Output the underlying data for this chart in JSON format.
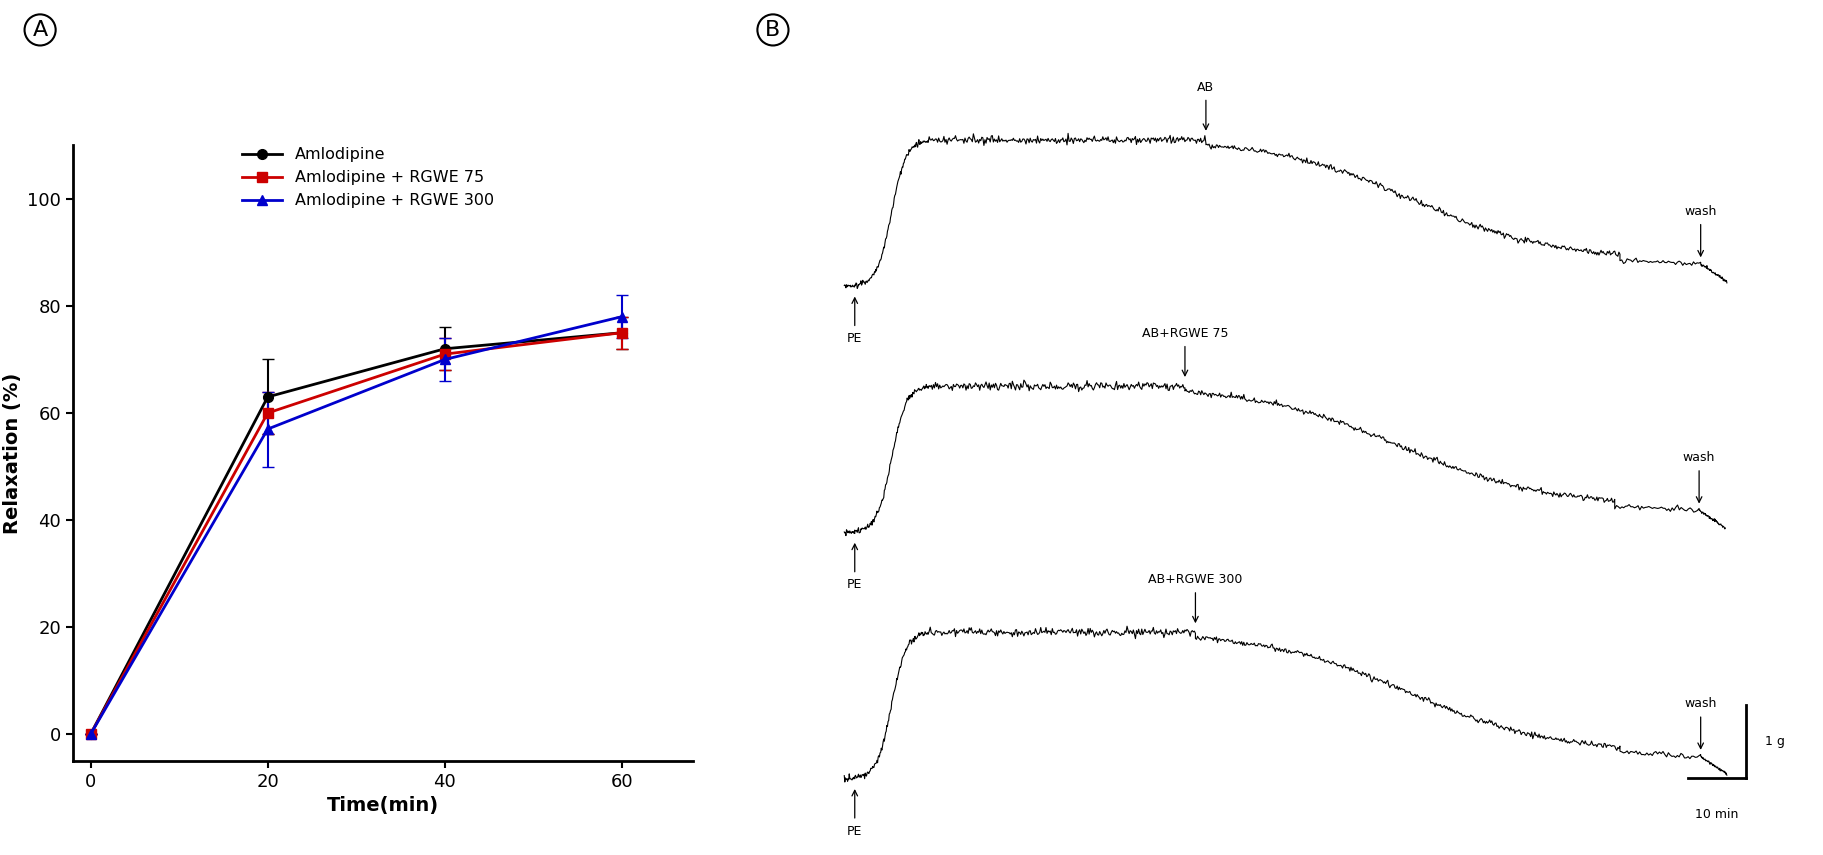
{
  "panel_A": {
    "time_points": [
      0,
      20,
      40,
      60
    ],
    "series": [
      {
        "label": "Amlodipine",
        "color": "#000000",
        "marker": "o",
        "values": [
          0,
          63,
          72,
          75
        ],
        "yerr": [
          0,
          7,
          4,
          3
        ]
      },
      {
        "label": "Amlodipine + RGWE 75",
        "color": "#cc0000",
        "marker": "s",
        "values": [
          0,
          60,
          71,
          75
        ],
        "yerr": [
          0,
          4,
          3,
          3
        ]
      },
      {
        "label": "Amlodipine + RGWE 300",
        "color": "#0000cc",
        "marker": "^",
        "values": [
          0,
          57,
          70,
          78
        ],
        "yerr": [
          0,
          7,
          4,
          4
        ]
      }
    ],
    "ylabel": "Relaxation (%)",
    "xlabel": "Time(min)",
    "ylim": [
      -5,
      110
    ],
    "yticks": [
      0,
      20,
      40,
      60,
      80,
      100
    ],
    "xticks": [
      0,
      20,
      40,
      60
    ]
  },
  "panel_B": {
    "traces": [
      {
        "ab_label": "AB",
        "pe_label": "PE",
        "wash_label": "wash"
      },
      {
        "ab_label": "AB+RGWE 75",
        "pe_label": "PE",
        "wash_label": "wash"
      },
      {
        "ab_label": "AB+RGWE 300",
        "pe_label": "PE",
        "wash_label": "wash"
      }
    ],
    "scale_label_g": "1 g",
    "scale_label_min": "10 min"
  },
  "figure": {
    "bg_color": "#ffffff",
    "panel_A_label": "A",
    "panel_B_label": "B"
  }
}
